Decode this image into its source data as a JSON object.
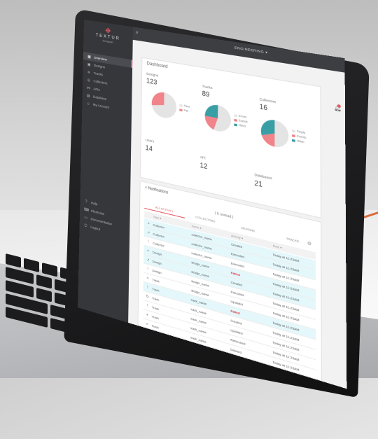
{
  "brand": {
    "name": "TEXTUR",
    "sub": "Groupon",
    "accent": "#e25b62"
  },
  "header": {
    "department": "ENGINEERING ▾"
  },
  "sidebar": {
    "items": [
      {
        "label": "Overview",
        "icon": "grid-icon",
        "active": true
      },
      {
        "label": "Designs",
        "icon": "image-icon"
      },
      {
        "label": "Tracks",
        "icon": "tracks-icon"
      },
      {
        "label": "Collectors",
        "icon": "collector-icon"
      },
      {
        "label": "APIs",
        "icon": "share-icon"
      },
      {
        "label": "Database",
        "icon": "database-icon"
      },
      {
        "label": "My Account",
        "icon": "user-icon"
      }
    ],
    "bottom": [
      {
        "label": "Help",
        "icon": "help-icon"
      },
      {
        "label": "Shortcuts",
        "icon": "keyboard-icon"
      },
      {
        "label": "Documentation",
        "icon": "doc-icon"
      },
      {
        "label": "Logout",
        "icon": "logout-icon"
      }
    ]
  },
  "dashboard": {
    "title": "Dashboard",
    "designs": {
      "label": "Designs",
      "value": "123",
      "legend": [
        "Pass",
        "Fail"
      ],
      "slices": [
        0.72,
        0.28
      ],
      "colors": [
        "#e4e4e4",
        "#f0848a"
      ]
    },
    "tracks": {
      "label": "Tracks",
      "value": "89",
      "legend": [
        "Errors",
        "Events",
        "Other"
      ],
      "slices": [
        0.55,
        0.2,
        0.25
      ],
      "colors": [
        "#e4e4e4",
        "#f0848a",
        "#3a9ea5"
      ]
    },
    "collectors": {
      "label": "Collectors",
      "value": "16",
      "legend": [
        "Empty",
        "Events",
        "Other"
      ],
      "slices": [
        0.5,
        0.2,
        0.3
      ],
      "colors": [
        "#e4e4e4",
        "#f0848a",
        "#3a9ea5"
      ]
    },
    "users": {
      "label": "Users",
      "value": "14"
    },
    "api": {
      "label": "API",
      "value": "12"
    },
    "databases": {
      "label": "Databases",
      "value": "21"
    }
  },
  "notifications": {
    "title": "Notifications",
    "unread": "( 6 unread )",
    "tabs": [
      "ALL ACTIVITY",
      "COLLECTORS",
      "DESIGNS",
      "TRACKS"
    ],
    "columns": [
      "Type",
      "Name",
      "Activity",
      "Time"
    ],
    "rows": [
      {
        "icon": "plus-icon",
        "type": "Collector",
        "name": "collector_name",
        "activity": "Created",
        "time": "Today at 11:23AM",
        "hl": true
      },
      {
        "icon": "arrow-icon",
        "type": "Collector",
        "name": "collector_name",
        "activity": "Executed",
        "time": "Today at 11:23AM",
        "hl": true
      },
      {
        "icon": "alert-icon",
        "type": "Collector",
        "name": "collector_name",
        "activity": "Executed",
        "time": "Today at 11:23AM",
        "hl": false
      },
      {
        "icon": "plus-icon",
        "type": "Design",
        "name": "design_name",
        "activity": "Failed",
        "time": "Today at 11:23AM",
        "hl": true,
        "fail": true
      },
      {
        "icon": "arrow-icon",
        "type": "Design",
        "name": "design_name",
        "activity": "Created",
        "time": "Today at 11:23AM",
        "hl": true
      },
      {
        "icon": "alert-icon",
        "type": "Design",
        "name": "design_name",
        "activity": "Executed",
        "time": "Today at 11:23AM",
        "hl": false
      },
      {
        "icon": "plus-icon",
        "type": "Track",
        "name": "design_name",
        "activity": "Updated",
        "time": "Today at 11:23AM",
        "hl": false
      },
      {
        "icon": "alert-icon",
        "type": "Track",
        "name": "track_name",
        "activity": "Failed",
        "time": "Today at 11:23AM",
        "hl": true,
        "fail": true
      },
      {
        "icon": "refresh-icon",
        "type": "Track",
        "name": "track_name",
        "activity": "Created",
        "time": "Today at 11:23AM",
        "hl": false
      },
      {
        "icon": "alert-icon",
        "type": "Track",
        "name": "track_name",
        "activity": "Updated",
        "time": "Today at 11:23AM",
        "hl": false
      },
      {
        "icon": "plus-icon",
        "type": "Track",
        "name": "track_name",
        "activity": "Refreshed",
        "time": "Today at 11:23AM",
        "hl": false
      },
      {
        "icon": "plus-icon",
        "type": "Track",
        "name": "track_name",
        "activity": "Deleted",
        "time": "Today at 11:23AM",
        "hl": false
      }
    ]
  }
}
